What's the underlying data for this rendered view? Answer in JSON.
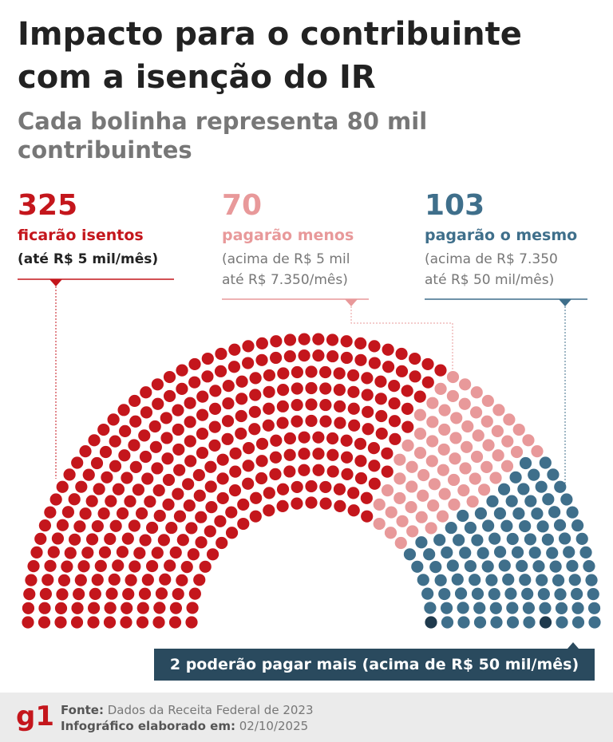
{
  "chart_data": {
    "type": "parliament",
    "title": "Impacto para o contribuinte com a isenção do IR",
    "subtitle": "Cada bolinha representa 80 mil contribuintes",
    "categories": [
      "ficarão isentos",
      "pagarão menos",
      "pagarão o mesmo",
      "poderão pagar mais"
    ],
    "descriptions": [
      [
        "(até R$ 5 mil/mês)"
      ],
      [
        "(acima de R$ 5 mil",
        "até R$ 7.350/mês)"
      ],
      [
        "(acima de R$ 7.350",
        "até R$ 50 mil/mês)"
      ],
      [
        "(acima de R$ 50 mil/mês)"
      ]
    ],
    "values": [
      325,
      70,
      103,
      2
    ],
    "colors": [
      "#c4161c",
      "#e8999a",
      "#3f6f8b",
      "#1f3a4d"
    ]
  },
  "footer": {
    "source_label": "Fonte:",
    "source": "Dados da Receita Federal de 2023",
    "date_label": "Infográfico elaborado em:",
    "date": "02/10/2025",
    "logo": "g1"
  }
}
